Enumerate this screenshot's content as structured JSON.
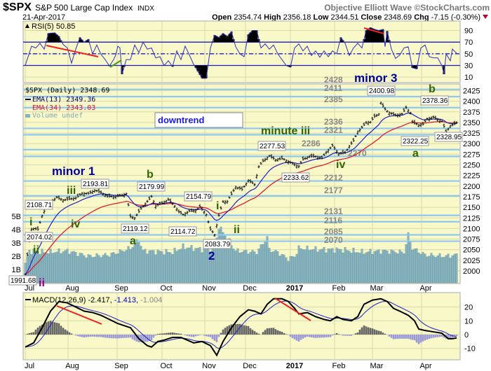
{
  "header": {
    "symbol": "$SPX",
    "name": "S&P 500 Large Cap Index",
    "exchange": "INDX",
    "date": "21-Apr-2017",
    "source": "Objective Elliott Wave ©StockCharts.com",
    "open_label": "Open",
    "open": "2354.74",
    "high_label": "High",
    "high": "2356.18",
    "low_label": "Low",
    "low": "2344.51",
    "close_label": "Close",
    "close": "2348.69",
    "chg_label": "Chg",
    "chg": "-7.15 (-0.30%)"
  },
  "colors": {
    "panel_bg": "#f8f8c8",
    "level_line": "#8ec8f0",
    "ema13": "#0000cc",
    "ema34": "#e0102a",
    "volume": "#88b4c0",
    "wave_green": "#336600",
    "wave_blue": "#000099"
  },
  "chart_data": [
    {
      "type": "line",
      "title": "RSI(5) 50.85",
      "legend": "RSI(5) 50.85",
      "yticks": [
        "90",
        "70",
        "50",
        "30",
        "10"
      ],
      "ylim": [
        0,
        100
      ],
      "levels": [
        70,
        50,
        30
      ],
      "points": [
        [
          0,
          30
        ],
        [
          3,
          63
        ],
        [
          5,
          60
        ],
        [
          7,
          68
        ],
        [
          9,
          58
        ],
        [
          11,
          85
        ],
        [
          14,
          86
        ],
        [
          16,
          80
        ],
        [
          18,
          66
        ],
        [
          20,
          60
        ],
        [
          22,
          34
        ],
        [
          24,
          58
        ],
        [
          26,
          78
        ],
        [
          28,
          70
        ],
        [
          30,
          75
        ],
        [
          32,
          50
        ],
        [
          34,
          65
        ],
        [
          36,
          49
        ],
        [
          38,
          40
        ],
        [
          40,
          29
        ],
        [
          42,
          40
        ],
        [
          43,
          48
        ],
        [
          44,
          63
        ],
        [
          45,
          60
        ],
        [
          46,
          15
        ],
        [
          48,
          40
        ],
        [
          50,
          40
        ],
        [
          52,
          65
        ],
        [
          54,
          52
        ],
        [
          56,
          70
        ],
        [
          58,
          58
        ],
        [
          60,
          60
        ],
        [
          62,
          43
        ],
        [
          64,
          45
        ],
        [
          66,
          30
        ],
        [
          68,
          38
        ],
        [
          70,
          28
        ],
        [
          72,
          55
        ],
        [
          74,
          40
        ],
        [
          76,
          63
        ],
        [
          78,
          48
        ],
        [
          80,
          32
        ],
        [
          82,
          20
        ],
        [
          84,
          8
        ],
        [
          86,
          8
        ],
        [
          88,
          60
        ],
        [
          90,
          82
        ],
        [
          92,
          78
        ],
        [
          94,
          85
        ],
        [
          96,
          80
        ],
        [
          98,
          88
        ],
        [
          100,
          62
        ],
        [
          102,
          50
        ],
        [
          104,
          45
        ],
        [
          106,
          83
        ],
        [
          108,
          90
        ],
        [
          110,
          90
        ],
        [
          112,
          60
        ],
        [
          114,
          67
        ],
        [
          116,
          58
        ],
        [
          118,
          65
        ],
        [
          120,
          50
        ],
        [
          122,
          40
        ],
        [
          124,
          30
        ],
        [
          126,
          27
        ],
        [
          128,
          60
        ],
        [
          130,
          67
        ],
        [
          132,
          55
        ],
        [
          134,
          63
        ],
        [
          136,
          47
        ],
        [
          138,
          55
        ],
        [
          140,
          44
        ],
        [
          142,
          55
        ],
        [
          144,
          45
        ],
        [
          146,
          55
        ],
        [
          148,
          50
        ],
        [
          150,
          78
        ],
        [
          152,
          68
        ],
        [
          154,
          47
        ],
        [
          156,
          60
        ],
        [
          158,
          68
        ],
        [
          160,
          60
        ],
        [
          162,
          90
        ],
        [
          164,
          95
        ],
        [
          166,
          92
        ],
        [
          168,
          90
        ],
        [
          170,
          92
        ],
        [
          171,
          62
        ],
        [
          172,
          89
        ],
        [
          174,
          58
        ],
        [
          176,
          42
        ],
        [
          178,
          48
        ],
        [
          180,
          60
        ],
        [
          182,
          62
        ],
        [
          184,
          26
        ],
        [
          186,
          24
        ],
        [
          188,
          60
        ],
        [
          190,
          65
        ],
        [
          192,
          45
        ],
        [
          194,
          43
        ],
        [
          196,
          43
        ],
        [
          198,
          30
        ],
        [
          199,
          15
        ],
        [
          200,
          50
        ],
        [
          202,
          38
        ],
        [
          203,
          58
        ],
        [
          205,
          51
        ]
      ]
    },
    {
      "type": "line",
      "title": "$SPX (Daily) 2348.69",
      "legend": [
        "$SPX (Daily) 2348.69",
        "EMA(13) 2349.36",
        "EMA(34) 2343.03",
        "Volume undef"
      ],
      "ylim": [
        1985,
        2440
      ],
      "yticks": [
        "2425",
        "2400",
        "2375",
        "2350",
        "2325",
        "2300",
        "2275",
        "2250",
        "2225",
        "2200",
        "2175",
        "2150",
        "2125",
        "2100",
        "2075",
        "2050",
        "2025",
        "2000"
      ],
      "volume_ticks": [
        "5B",
        "4B",
        "3B",
        "2B",
        "1B"
      ],
      "xticks": [
        "Jul",
        "Aug",
        "Sep",
        "Oct",
        "Nov",
        "Dec",
        "2017",
        "Feb",
        "Mar",
        "Apr"
      ],
      "closes": [
        [
          0,
          1992
        ],
        [
          1,
          2037
        ],
        [
          2,
          2071
        ],
        [
          3,
          2099
        ],
        [
          4,
          2100
        ],
        [
          6,
          2098
        ],
        [
          8,
          2130
        ],
        [
          10,
          2152
        ],
        [
          12,
          2163
        ],
        [
          15,
          2173
        ],
        [
          18,
          2167
        ],
        [
          21,
          2170
        ],
        [
          24,
          2172
        ],
        [
          27,
          2183
        ],
        [
          30,
          2182
        ],
        [
          33,
          2190
        ],
        [
          36,
          2185
        ],
        [
          39,
          2176
        ],
        [
          42,
          2175
        ],
        [
          45,
          2177
        ],
        [
          48,
          2182
        ],
        [
          50,
          2128
        ],
        [
          52,
          2125
        ],
        [
          55,
          2147
        ],
        [
          58,
          2164
        ],
        [
          60,
          2175
        ],
        [
          62,
          2153
        ],
        [
          65,
          2160
        ],
        [
          68,
          2168
        ],
        [
          71,
          2153
        ],
        [
          73,
          2139
        ],
        [
          75,
          2133
        ],
        [
          78,
          2141
        ],
        [
          81,
          2143
        ],
        [
          83,
          2151
        ],
        [
          86,
          2133
        ],
        [
          88,
          2098
        ],
        [
          90,
          2085
        ],
        [
          92,
          2131
        ],
        [
          94,
          2163
        ],
        [
          96,
          2164
        ],
        [
          98,
          2181
        ],
        [
          100,
          2198
        ],
        [
          103,
          2192
        ],
        [
          106,
          2213
        ],
        [
          109,
          2204
        ],
        [
          111,
          2246
        ],
        [
          113,
          2259
        ],
        [
          116,
          2271
        ],
        [
          119,
          2262
        ],
        [
          122,
          2265
        ],
        [
          125,
          2258
        ],
        [
          128,
          2250
        ],
        [
          130,
          2247
        ],
        [
          132,
          2263
        ],
        [
          135,
          2270
        ],
        [
          138,
          2270
        ],
        [
          141,
          2266
        ],
        [
          143,
          2280
        ],
        [
          146,
          2295
        ],
        [
          149,
          2276
        ],
        [
          152,
          2279
        ],
        [
          154,
          2294
        ],
        [
          156,
          2307
        ],
        [
          158,
          2328
        ],
        [
          160,
          2338
        ],
        [
          162,
          2350
        ],
        [
          164,
          2351
        ],
        [
          166,
          2364
        ],
        [
          168,
          2370
        ],
        [
          169,
          2396
        ],
        [
          171,
          2381
        ],
        [
          173,
          2373
        ],
        [
          176,
          2367
        ],
        [
          179,
          2370
        ],
        [
          181,
          2385
        ],
        [
          183,
          2373
        ],
        [
          184,
          2351
        ],
        [
          187,
          2344
        ],
        [
          189,
          2346
        ],
        [
          191,
          2359
        ],
        [
          194,
          2362
        ],
        [
          196,
          2357
        ],
        [
          198,
          2353
        ],
        [
          200,
          2328
        ],
        [
          202,
          2342
        ],
        [
          205,
          2349
        ]
      ],
      "volume_billions": [
        [
          0,
          1.4
        ],
        [
          2,
          2.4
        ],
        [
          10,
          2.3
        ],
        [
          20,
          2.4
        ],
        [
          30,
          2.0
        ],
        [
          40,
          2.1
        ],
        [
          50,
          2.6
        ],
        [
          54,
          3.2
        ],
        [
          56,
          2.4
        ],
        [
          70,
          2.3
        ],
        [
          75,
          2.7
        ],
        [
          85,
          2.5
        ],
        [
          90,
          2.6
        ],
        [
          92,
          4.2
        ],
        [
          95,
          3.6
        ],
        [
          100,
          2.4
        ],
        [
          110,
          2.3
        ],
        [
          115,
          3.4
        ],
        [
          116,
          2.5
        ],
        [
          120,
          2.3
        ],
        [
          125,
          1.8
        ],
        [
          128,
          2.0
        ],
        [
          130,
          2.6
        ],
        [
          140,
          2.5
        ],
        [
          150,
          2.5
        ],
        [
          160,
          2.3
        ],
        [
          170,
          2.4
        ],
        [
          180,
          2.3
        ],
        [
          182,
          3.6
        ],
        [
          184,
          2.6
        ],
        [
          190,
          2.1
        ],
        [
          200,
          2.0
        ],
        [
          205,
          2.1
        ]
      ],
      "levels": [
        {
          "value": 2428,
          "label": "2428"
        },
        {
          "value": 2411,
          "label": "2411"
        },
        {
          "value": 2385,
          "label": "2385"
        },
        {
          "value": 2336,
          "label": "2336"
        },
        {
          "value": 2321,
          "label": "2321"
        },
        {
          "value": 2286,
          "label": "2286"
        },
        {
          "value": 2270,
          "label": "2270"
        },
        {
          "value": 2212,
          "label": "2212"
        },
        {
          "value": 2177,
          "label": "2177"
        },
        {
          "value": 2131,
          "label": "2131"
        },
        {
          "value": 2116,
          "label": "2116"
        },
        {
          "value": 2085,
          "label": "2085"
        },
        {
          "value": 2070,
          "label": "2070"
        }
      ],
      "price_labels": [
        "2108.71",
        "2074.02",
        "1991.68",
        "2193.81",
        "2179.99",
        "2119.12",
        "2154.79",
        "2114.72",
        "2083.79",
        "2277.53",
        "2233.62",
        "2400.98",
        "2378.36",
        "2322.25",
        "2328.95"
      ],
      "annotations": {
        "downtrend": "downtrend",
        "minor1": "minor 1",
        "minor3": "minor 3",
        "minute_iii": "minute iii",
        "w_i_start": "i",
        "w_ii_start": "ii",
        "w_ii_purple": "ii",
        "w_iii": "iii",
        "w_iv": "iv",
        "w_a1": "a",
        "w_b1": "b",
        "w_2": "2",
        "w_i2": "i",
        "w_ii2": "ii",
        "w_iv2": "iv",
        "w_b3": "b",
        "w_a3": "a"
      }
    },
    {
      "type": "line",
      "title": "MACD(12,26,9)",
      "legend": [
        "MACD(12,26,9)",
        "-2.417,",
        "-1.413,",
        "-1.004"
      ],
      "yticks": [
        "20",
        "10",
        "0",
        "-10"
      ],
      "ylim": [
        -17,
        30
      ],
      "macd_points": [
        [
          0,
          -9
        ],
        [
          4,
          -6
        ],
        [
          8,
          5
        ],
        [
          12,
          17
        ],
        [
          16,
          24
        ],
        [
          20,
          23
        ],
        [
          24,
          20
        ],
        [
          28,
          17
        ],
        [
          32,
          16
        ],
        [
          36,
          14
        ],
        [
          40,
          11
        ],
        [
          44,
          8
        ],
        [
          48,
          6
        ],
        [
          50,
          5
        ],
        [
          54,
          -3
        ],
        [
          58,
          -8
        ],
        [
          60,
          -9
        ],
        [
          63,
          -5
        ],
        [
          66,
          -4
        ],
        [
          70,
          -2
        ],
        [
          74,
          -2
        ],
        [
          77,
          -4
        ],
        [
          80,
          -6
        ],
        [
          84,
          -5
        ],
        [
          88,
          -8
        ],
        [
          91,
          -15
        ],
        [
          94,
          -5
        ],
        [
          98,
          5
        ],
        [
          102,
          13
        ],
        [
          106,
          18
        ],
        [
          109,
          17
        ],
        [
          112,
          15
        ],
        [
          115,
          22
        ],
        [
          118,
          26
        ],
        [
          122,
          26
        ],
        [
          125,
          24
        ],
        [
          128,
          19
        ],
        [
          130,
          15
        ],
        [
          134,
          16
        ],
        [
          138,
          13
        ],
        [
          142,
          11
        ],
        [
          145,
          10
        ],
        [
          148,
          13
        ],
        [
          151,
          11
        ],
        [
          155,
          10
        ],
        [
          158,
          13
        ],
        [
          161,
          22
        ],
        [
          165,
          25
        ],
        [
          169,
          26
        ],
        [
          172,
          24
        ],
        [
          175,
          19
        ],
        [
          178,
          17
        ],
        [
          182,
          14
        ],
        [
          185,
          10
        ],
        [
          187,
          4
        ],
        [
          190,
          3
        ],
        [
          194,
          2
        ],
        [
          198,
          1
        ],
        [
          201,
          -3
        ],
        [
          203,
          -3
        ],
        [
          205,
          -2.4
        ]
      ]
    }
  ]
}
